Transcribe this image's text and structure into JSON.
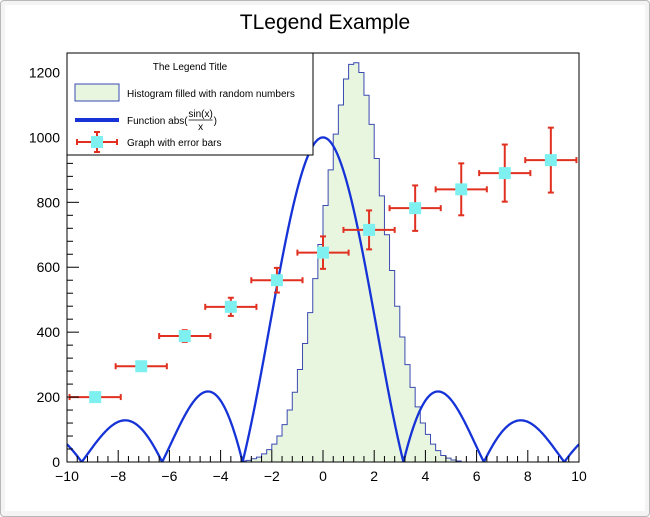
{
  "chart_data": {
    "type": "histogram+line+scatter",
    "title": "TLegend Example",
    "xlabel": "",
    "ylabel": "",
    "xlim": [
      -10,
      10
    ],
    "ylim": [
      0,
      1260
    ],
    "x_ticks": [
      -10,
      -8,
      -6,
      -4,
      -2,
      0,
      2,
      4,
      6,
      8,
      10
    ],
    "x_tick_labels": [
      "−10",
      "−8",
      "−6",
      "−4",
      "−2",
      "0",
      "2",
      "4",
      "6",
      "8",
      "10"
    ],
    "y_ticks": [
      0,
      200,
      400,
      600,
      800,
      1000,
      1200
    ],
    "y_tick_labels": [
      "0",
      "200",
      "400",
      "600",
      "800",
      "1000",
      "1200"
    ],
    "grid": false,
    "legend": {
      "placement": "top-left",
      "title": "The Legend Title",
      "entries": [
        {
          "label": "Histogram filled with random numbers"
        },
        {
          "label_prefix": "Function abs(",
          "label_num": "sin(x)",
          "label_den": "x",
          "label_suffix": ")"
        },
        {
          "label": "Graph with error bars"
        }
      ]
    },
    "histogram": {
      "name": "Histogram filled with random numbers",
      "x_min": -3.2,
      "bin_width": 0.2,
      "counts": [
        3,
        5,
        10,
        15,
        25,
        38,
        55,
        80,
        115,
        160,
        215,
        285,
        365,
        460,
        565,
        670,
        790,
        900,
        1010,
        1100,
        1180,
        1225,
        1230,
        1200,
        1130,
        1040,
        935,
        820,
        700,
        590,
        480,
        385,
        300,
        230,
        170,
        120,
        85,
        55,
        35,
        20,
        12,
        6,
        3
      ],
      "colors": {
        "line": "#3a4ab0",
        "fill": "#e8f6e0"
      }
    },
    "function": {
      "name": "Function abs(sin(x)/x)",
      "expression": "1000*abs(sin(x)/x)",
      "x_range": [
        -10,
        10
      ],
      "color": "#1533d6"
    },
    "graph": {
      "name": "Graph with error bars",
      "points": [
        {
          "x": -8.9,
          "y": 200,
          "ex": 1.0,
          "ey": 0
        },
        {
          "x": -7.1,
          "y": 295,
          "ex": 1.0,
          "ey": 0
        },
        {
          "x": -5.4,
          "y": 388,
          "ex": 1.0,
          "ey": 18
        },
        {
          "x": -3.6,
          "y": 478,
          "ex": 1.0,
          "ey": 28
        },
        {
          "x": -1.8,
          "y": 560,
          "ex": 1.0,
          "ey": 38
        },
        {
          "x": 0.0,
          "y": 645,
          "ex": 1.0,
          "ey": 50
        },
        {
          "x": 1.8,
          "y": 715,
          "ex": 1.0,
          "ey": 60
        },
        {
          "x": 3.6,
          "y": 782,
          "ex": 1.0,
          "ey": 70
        },
        {
          "x": 5.4,
          "y": 840,
          "ex": 1.0,
          "ey": 80
        },
        {
          "x": 7.1,
          "y": 890,
          "ex": 1.0,
          "ey": 88
        },
        {
          "x": 8.9,
          "y": 930,
          "ex": 1.0,
          "ey": 100
        }
      ],
      "marker_color": "#7ff0f0",
      "error_color": "#e03020"
    }
  }
}
